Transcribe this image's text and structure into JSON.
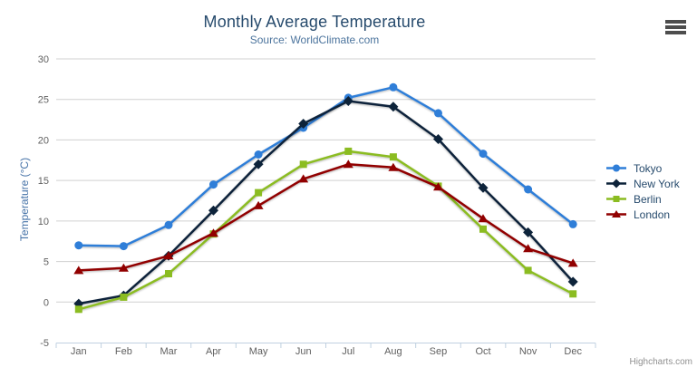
{
  "chart": {
    "export_button_icon": "hamburger-menu"
  },
  "chart_data": {
    "type": "line",
    "title": "Monthly Average Temperature",
    "subtitle": "Source: WorldClimate.com",
    "credits": "Highcharts.com",
    "categories": [
      "Jan",
      "Feb",
      "Mar",
      "Apr",
      "May",
      "Jun",
      "Jul",
      "Aug",
      "Sep",
      "Oct",
      "Nov",
      "Dec"
    ],
    "series": [
      {
        "name": "Tokyo",
        "color": "#2f7ed8",
        "marker": "circle",
        "values": [
          7.0,
          6.9,
          9.5,
          14.5,
          18.2,
          21.5,
          25.2,
          26.5,
          23.3,
          18.3,
          13.9,
          9.6
        ]
      },
      {
        "name": "New York",
        "color": "#0d233a",
        "marker": "diamond",
        "values": [
          -0.2,
          0.8,
          5.7,
          11.3,
          17.0,
          22.0,
          24.8,
          24.1,
          20.1,
          14.1,
          8.6,
          2.5
        ]
      },
      {
        "name": "Berlin",
        "color": "#8bbc21",
        "marker": "square",
        "values": [
          -0.9,
          0.6,
          3.5,
          8.4,
          13.5,
          17.0,
          18.6,
          17.9,
          14.3,
          9.0,
          3.9,
          1.0
        ]
      },
      {
        "name": "London",
        "color": "#910000",
        "marker": "triangle",
        "values": [
          3.9,
          4.2,
          5.7,
          8.5,
          11.9,
          15.2,
          17.0,
          16.6,
          14.2,
          10.3,
          6.6,
          4.8
        ]
      }
    ],
    "xlabel": "",
    "ylabel": "Temperature (°C)",
    "ylim": [
      -5,
      30
    ],
    "ytick_step": 5,
    "grid": true,
    "legend_position": "right"
  }
}
